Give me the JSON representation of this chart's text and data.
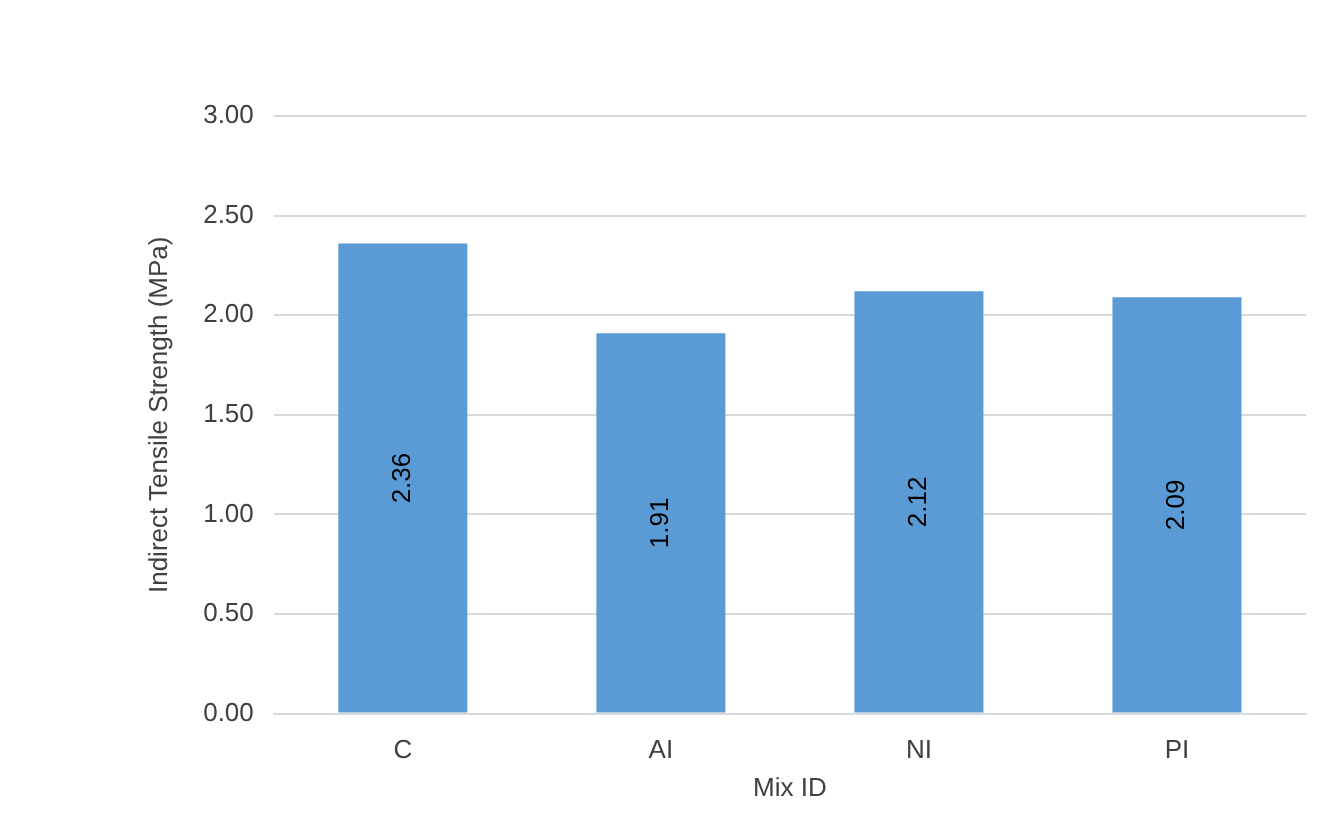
{
  "chart_data": {
    "type": "bar",
    "xlabel": "Mix ID",
    "ylabel": "Indirect Tensile Strength (MPa)",
    "categories": [
      "C",
      "AI",
      "NI",
      "PI"
    ],
    "values": [
      2.36,
      1.91,
      2.12,
      2.09
    ],
    "color": "#5b9bd5",
    "ylim": [
      0,
      3
    ],
    "yticks": [
      {
        "value": 0,
        "label": "0.00"
      },
      {
        "value": 0.5,
        "label": "0.50"
      },
      {
        "value": 1,
        "label": "1.00"
      },
      {
        "value": 1.5,
        "label": "1.50"
      },
      {
        "value": 2,
        "label": "2.00"
      },
      {
        "value": 2.5,
        "label": "2.50"
      },
      {
        "value": 3,
        "label": "3.00"
      }
    ],
    "grid": "y",
    "data_labels": true
  }
}
